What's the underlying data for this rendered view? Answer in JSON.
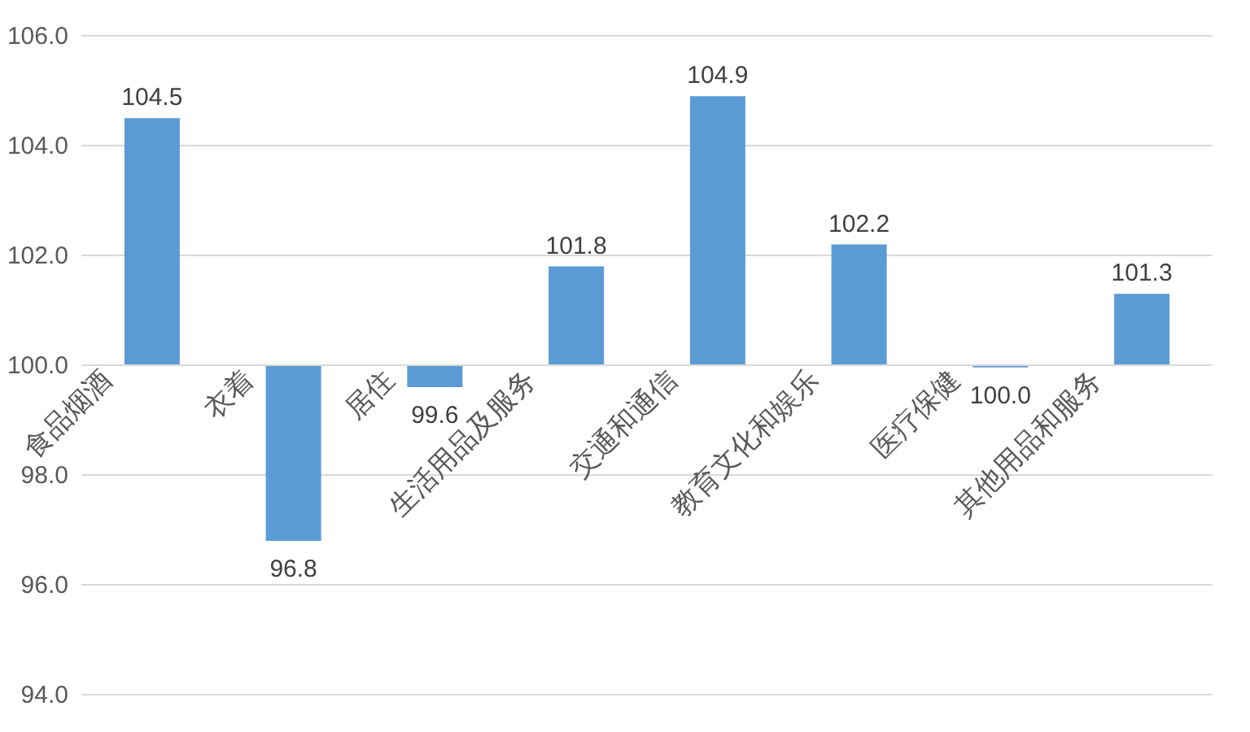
{
  "chart_data": {
    "type": "bar",
    "categories": [
      "食品烟酒",
      "衣着",
      "居住",
      "生活用品及服务",
      "交通和通信",
      "教育文化和娱乐",
      "医疗保健",
      "其他用品和服务"
    ],
    "base": [
      100,
      100,
      100,
      100,
      100,
      100,
      100,
      100
    ],
    "values": [
      4.5,
      -3.2,
      -0.4,
      1.8,
      4.9,
      2.2,
      -0.04,
      1.3
    ],
    "value_labels": [
      "104.5",
      "96.8",
      "99.6",
      "101.8",
      "104.9",
      "102.2",
      "100.0",
      "101.3"
    ],
    "color": "#5b9bd5",
    "ylim": [
      94,
      106
    ],
    "yticks": [
      {
        "value": 94,
        "label": "94.0"
      },
      {
        "value": 96,
        "label": "96.0"
      },
      {
        "value": 98,
        "label": "98.0"
      },
      {
        "value": 100,
        "label": "100.0"
      },
      {
        "value": 102,
        "label": "102.0"
      },
      {
        "value": 104,
        "label": "104.0"
      },
      {
        "value": 106,
        "label": "106.0"
      }
    ],
    "grid": "y"
  }
}
